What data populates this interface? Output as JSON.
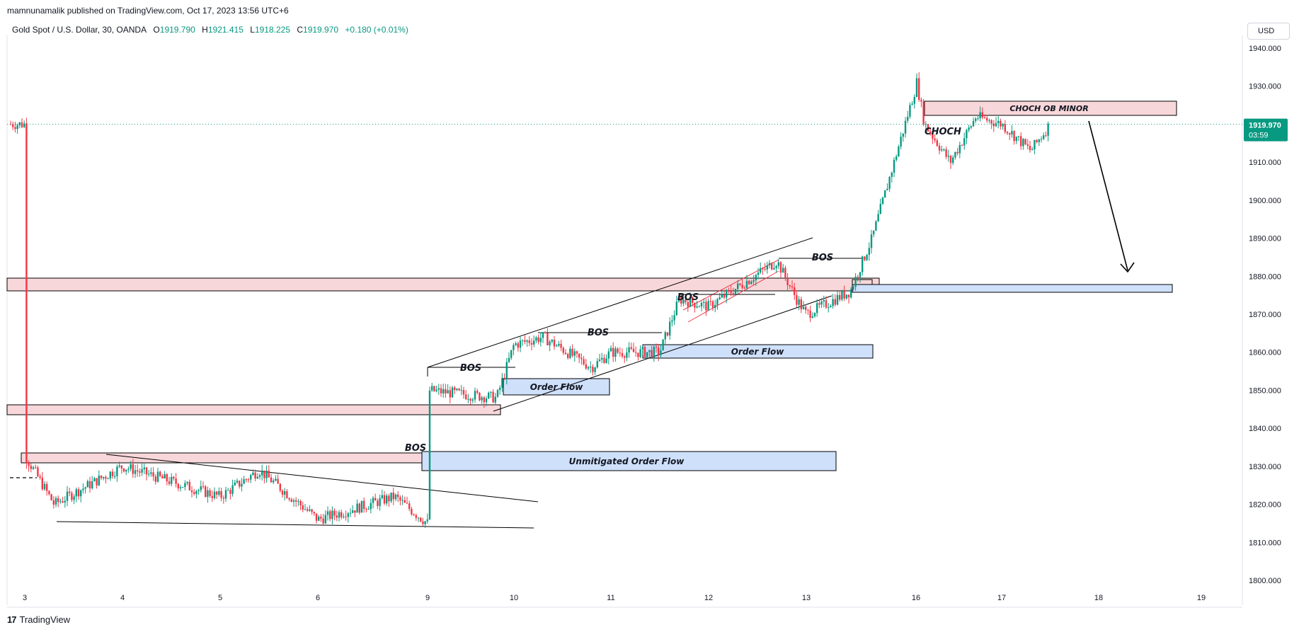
{
  "header": {
    "published_by": "mamnunamalik published on TradingView.com, Oct 17, 2023 13:56 UTC+6"
  },
  "legend": {
    "symbol": "Gold Spot / U.S. Dollar, 30, OANDA",
    "o_label": "O",
    "o_value": "1919.790",
    "h_label": "H",
    "h_value": "1921.415",
    "l_label": "L",
    "l_value": "1918.225",
    "c_label": "C",
    "c_value": "1919.970",
    "change": "+0.180 (+0.01%)"
  },
  "toolbar": {
    "currency": "USD"
  },
  "footer": {
    "logo_mark": "17",
    "brand": "TradingView"
  },
  "colors": {
    "up": "#089981",
    "down": "#f23645",
    "supply_zone": "#f8d7da",
    "demand_zone": "#cfe0fb",
    "grid_dot": "#089981"
  },
  "chart_data": {
    "type": "candlestick",
    "symbol": "XAUUSD",
    "timeframe": "30",
    "ylim": [
      1800,
      1940
    ],
    "y_ticks": [
      "1940.000",
      "1930.000",
      "1920.000",
      "1910.000",
      "1900.000",
      "1890.000",
      "1880.000",
      "1870.000",
      "1860.000",
      "1850.000",
      "1840.000",
      "1830.000",
      "1820.000",
      "1810.000",
      "1800.000"
    ],
    "x_ticks": [
      "3",
      "4",
      "5",
      "6",
      "9",
      "10",
      "11",
      "12",
      "13",
      "16",
      "17",
      "18",
      "19"
    ],
    "last_price": "1919.970",
    "countdown": "03:59",
    "price_path": [
      {
        "x": "3",
        "y": 1833
      },
      {
        "x": "3.3",
        "y": 1820
      },
      {
        "x": "4",
        "y": 1830
      },
      {
        "x": "5",
        "y": 1822
      },
      {
        "x": "5.4",
        "y": 1829
      },
      {
        "x": "6",
        "y": 1816
      },
      {
        "x": "6.7",
        "y": 1822
      },
      {
        "x": "8.8",
        "y": 1815
      },
      {
        "x": "9",
        "y": 1850
      },
      {
        "x": "9.8",
        "y": 1848
      },
      {
        "x": "10",
        "y": 1862
      },
      {
        "x": "10.3",
        "y": 1864
      },
      {
        "x": "10.8",
        "y": 1856
      },
      {
        "x": "11",
        "y": 1860
      },
      {
        "x": "11.5",
        "y": 1860
      },
      {
        "x": "11.7",
        "y": 1874
      },
      {
        "x": "12",
        "y": 1872
      },
      {
        "x": "12.7",
        "y": 1884
      },
      {
        "x": "12.9",
        "y": 1874
      },
      {
        "x": "13",
        "y": 1870
      },
      {
        "x": "13.4",
        "y": 1876
      },
      {
        "x": "13.6",
        "y": 1890
      },
      {
        "x": "15.6",
        "y": 1930
      },
      {
        "x": "15.9",
        "y": 1932
      },
      {
        "x": "16.1",
        "y": 1920
      },
      {
        "x": "16.4",
        "y": 1910
      },
      {
        "x": "16.7",
        "y": 1922
      },
      {
        "x": "17",
        "y": 1920
      },
      {
        "x": "17.3",
        "y": 1913
      },
      {
        "x": "17.5",
        "y": 1920
      }
    ],
    "annotations": [
      "BOS",
      "BOS",
      "BOS",
      "BOS",
      "BOS",
      "CHOCH",
      "CHOCH OB MINOR",
      "Order Flow",
      "Order Flow",
      "Unmitigated Order Flow"
    ]
  }
}
